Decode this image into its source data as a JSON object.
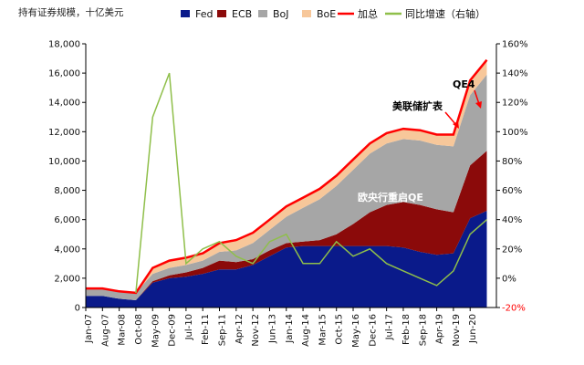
{
  "chart_data": {
    "type": "area",
    "unit_label": "持有证券规模，十亿美元",
    "legend": [
      {
        "key": "fed",
        "label": "Fed",
        "color": "#0a1a8a",
        "kind": "box"
      },
      {
        "key": "ecb",
        "label": "ECB",
        "color": "#8b0a0a",
        "kind": "box"
      },
      {
        "key": "boj",
        "label": "BoJ",
        "color": "#a6a6a6",
        "kind": "box"
      },
      {
        "key": "boe",
        "label": "BoE",
        "color": "#f7c79a",
        "kind": "box"
      },
      {
        "key": "total",
        "label": "加总",
        "color": "#ff0000",
        "kind": "line"
      },
      {
        "key": "yoy",
        "label": "同比增速（右轴）",
        "color": "#8fbf4a",
        "kind": "line"
      }
    ],
    "x_tick_labels": [
      "Jan-07",
      "Aug-07",
      "Mar-08",
      "Oct-08",
      "May-09",
      "Dec-09",
      "Jul-10",
      "Feb-11",
      "Sep-11",
      "Apr-12",
      "Nov-12",
      "Jun-13",
      "Jan-14",
      "Aug-14",
      "Mar-15",
      "Oct-15",
      "May-16",
      "Dec-16",
      "Jul-17",
      "Feb-18",
      "Sep-18",
      "Apr-19",
      "Nov-19",
      "Jun-20"
    ],
    "y_left": {
      "min": 0,
      "max": 18000,
      "step": 2000,
      "tick_labels": [
        "0",
        "2,000",
        "4,000",
        "6,000",
        "8,000",
        "10,000",
        "12,000",
        "14,000",
        "16,000",
        "18,000"
      ]
    },
    "y_right": {
      "min": -20,
      "max": 160,
      "step": 20,
      "tick_labels": [
        "-20%",
        "0%",
        "20%",
        "40%",
        "60%",
        "80%",
        "100%",
        "120%",
        "140%",
        "160%"
      ]
    },
    "x_index": [
      0,
      7,
      14,
      21,
      28,
      35,
      42,
      49,
      56,
      63,
      70,
      77,
      84,
      91,
      98,
      105,
      112,
      119,
      126,
      133,
      140,
      147,
      154,
      161,
      168
    ],
    "series": [
      {
        "key": "fed",
        "values": [
          800,
          800,
          600,
          500,
          1700,
          2000,
          2100,
          2300,
          2600,
          2600,
          2900,
          3500,
          4100,
          4200,
          4200,
          4200,
          4200,
          4200,
          4200,
          4100,
          3800,
          3600,
          3700,
          6100,
          6600
        ]
      },
      {
        "key": "ecb",
        "values": [
          0,
          0,
          0,
          0,
          100,
          200,
          300,
          400,
          600,
          500,
          400,
          400,
          300,
          300,
          400,
          800,
          1500,
          2300,
          2800,
          3100,
          3200,
          3100,
          2800,
          3600,
          4100
        ]
      },
      {
        "key": "boj",
        "values": [
          500,
          500,
          500,
          500,
          500,
          500,
          500,
          500,
          600,
          800,
          1100,
          1400,
          1800,
          2300,
          2800,
          3300,
          3700,
          4000,
          4200,
          4300,
          4400,
          4400,
          4500,
          4800,
          5200
        ]
      },
      {
        "key": "boe",
        "values": [
          0,
          0,
          0,
          0,
          400,
          500,
          500,
          500,
          600,
          700,
          700,
          700,
          700,
          700,
          700,
          700,
          700,
          700,
          700,
          700,
          700,
          700,
          800,
          1000,
          1000
        ]
      }
    ],
    "total": [
      1300,
      1300,
      1100,
      1000,
      2700,
      3200,
      3400,
      3700,
      4400,
      4600,
      5100,
      6000,
      6900,
      7500,
      8100,
      9000,
      10100,
      11200,
      11900,
      12200,
      12100,
      11800,
      11800,
      15500,
      16900
    ],
    "yoy_pct": [
      null,
      null,
      null,
      -10,
      110,
      140,
      10,
      20,
      25,
      15,
      10,
      25,
      30,
      10,
      10,
      25,
      15,
      20,
      10,
      5,
      0,
      -5,
      5,
      30,
      40
    ],
    "annotations": [
      {
        "text": "QE4",
        "color": "#000000"
      },
      {
        "text": "美联储扩表",
        "color": "#000000"
      },
      {
        "text": "欧央行重启QE",
        "color": "#ffffff"
      }
    ]
  }
}
